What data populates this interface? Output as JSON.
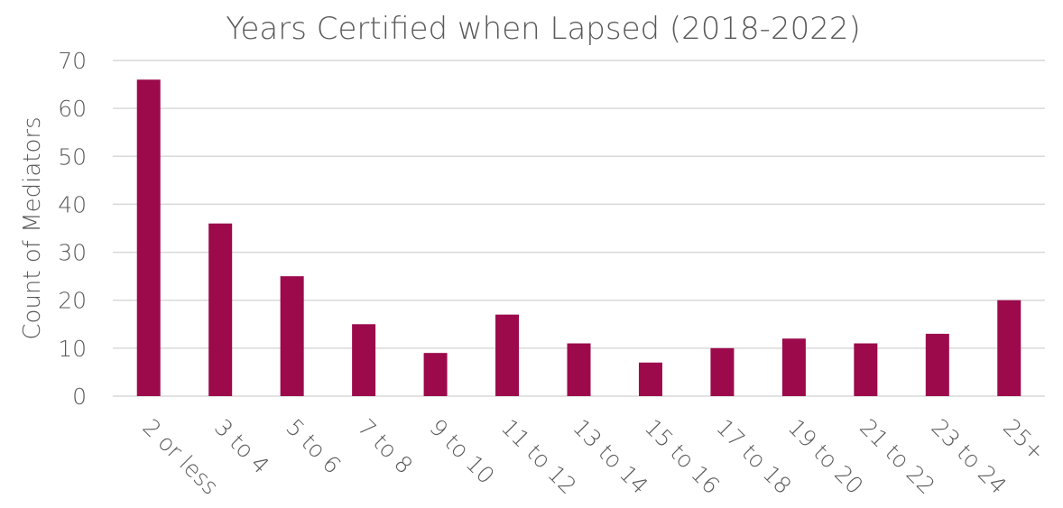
{
  "chart_data": {
    "type": "bar",
    "title": "Years Certified when Lapsed (2018-2022)",
    "xlabel": "",
    "ylabel": "Count of Mediators",
    "categories": [
      "2 or less",
      "3 to 4",
      "5 to 6",
      "7 to 8",
      "9 to 10",
      "11 to 12",
      "13 to 14",
      "15 to 16",
      "17 to 18",
      "19 to 20",
      "21 to 22",
      "23 to 24",
      "25+"
    ],
    "values": [
      66,
      36,
      25,
      15,
      9,
      17,
      11,
      7,
      10,
      12,
      11,
      13,
      20
    ],
    "ylim": [
      0,
      70
    ],
    "yticks": [
      0,
      10,
      20,
      30,
      40,
      50,
      60,
      70
    ],
    "grid": true,
    "legend": "none",
    "bar_color": "#9c0a4c"
  }
}
